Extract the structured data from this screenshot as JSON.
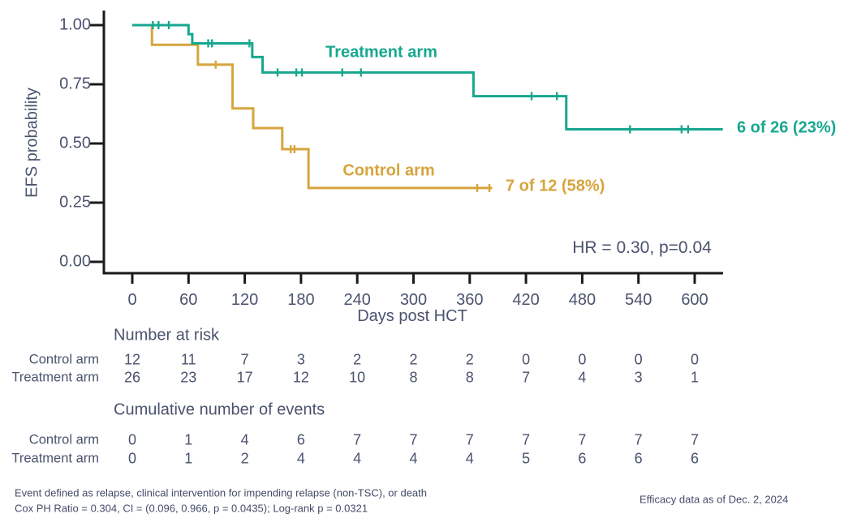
{
  "chart_data": {
    "type": "line",
    "subtype": "kaplan-meier-step",
    "title": "",
    "xlabel": "Days post HCT",
    "ylabel": "EFS probability",
    "xlim": [
      0,
      628
    ],
    "ylim": [
      0,
      1.0
    ],
    "grid": false,
    "x_ticks": [
      0,
      60,
      120,
      180,
      240,
      300,
      360,
      420,
      480,
      540,
      600
    ],
    "y_ticks": [
      {
        "value": 1.0,
        "label": "1.00"
      },
      {
        "value": 0.75,
        "label": "0.75"
      },
      {
        "value": 0.5,
        "label": "0.50"
      },
      {
        "value": 0.25,
        "label": "0.25"
      },
      {
        "value": 0.0,
        "label": "0.00"
      }
    ],
    "axis_color": "#1A1A1A",
    "text_color": "#4A536E",
    "series": [
      {
        "name": "Control arm",
        "color": "#D6A53D",
        "end_label": "7 of 12 (58%)",
        "steps": [
          [
            0,
            1.0
          ],
          [
            21,
            1.0
          ],
          [
            21,
            0.917
          ],
          [
            70,
            0.917
          ],
          [
            70,
            0.833
          ],
          [
            107,
            0.833
          ],
          [
            107,
            0.648
          ],
          [
            129,
            0.648
          ],
          [
            129,
            0.565
          ],
          [
            160,
            0.565
          ],
          [
            160,
            0.476
          ],
          [
            188,
            0.476
          ],
          [
            188,
            0.312
          ],
          [
            384,
            0.312
          ]
        ],
        "censors": [
          [
            89,
            0.833
          ],
          [
            169,
            0.476
          ],
          [
            173,
            0.476
          ],
          [
            368,
            0.312
          ],
          [
            381,
            0.312
          ]
        ]
      },
      {
        "name": "Treatment arm",
        "color": "#17A78F",
        "end_label": "6 of 26 (23%)",
        "steps": [
          [
            0,
            1.0
          ],
          [
            60,
            1.0
          ],
          [
            60,
            0.962
          ],
          [
            64,
            0.962
          ],
          [
            64,
            0.923
          ],
          [
            128,
            0.923
          ],
          [
            128,
            0.865
          ],
          [
            139,
            0.865
          ],
          [
            139,
            0.8
          ],
          [
            364,
            0.8
          ],
          [
            364,
            0.7
          ],
          [
            463,
            0.7
          ],
          [
            463,
            0.56
          ],
          [
            630,
            0.56
          ]
        ],
        "censors": [
          [
            22,
            1.0
          ],
          [
            28,
            1.0
          ],
          [
            39,
            1.0
          ],
          [
            81,
            0.923
          ],
          [
            85,
            0.923
          ],
          [
            125,
            0.923
          ],
          [
            155,
            0.8
          ],
          [
            175,
            0.8
          ],
          [
            181,
            0.8
          ],
          [
            224,
            0.8
          ],
          [
            244,
            0.8
          ],
          [
            426,
            0.7
          ],
          [
            453,
            0.7
          ],
          [
            531,
            0.56
          ],
          [
            586,
            0.56
          ],
          [
            593,
            0.56
          ]
        ]
      }
    ],
    "annotation": "HR = 0.30, p=0.04"
  },
  "risk_table": {
    "title": "Number at risk",
    "rows": [
      {
        "label": "Control arm",
        "values": [
          12,
          11,
          7,
          3,
          2,
          2,
          2,
          0,
          0,
          0,
          0
        ]
      },
      {
        "label": "Treatment arm",
        "values": [
          26,
          23,
          17,
          12,
          10,
          8,
          8,
          7,
          4,
          3,
          1
        ]
      }
    ]
  },
  "events_table": {
    "title": "Cumulative number of events",
    "rows": [
      {
        "label": "Control arm",
        "values": [
          0,
          1,
          4,
          6,
          7,
          7,
          7,
          7,
          7,
          7,
          7
        ]
      },
      {
        "label": "Treatment arm",
        "values": [
          0,
          1,
          2,
          4,
          4,
          4,
          4,
          5,
          6,
          6,
          6
        ]
      }
    ]
  },
  "footnotes": {
    "line1": "Event defined as relapse, clinical intervention for impending relapse (non-TSC), or death",
    "line2": "Cox PH Ratio = 0.304, CI = (0.096, 0.966, p = 0.0435); Log-rank p = 0.0321",
    "right": "Efficacy data as of Dec. 2, 2024"
  }
}
